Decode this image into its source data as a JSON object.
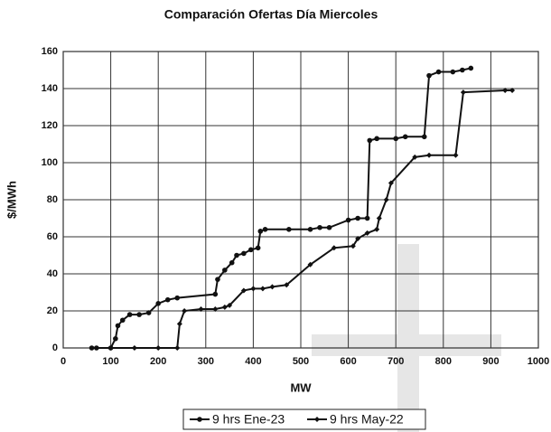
{
  "chart_data": {
    "type": "line",
    "title": "Comparación Ofertas Día Miercoles",
    "x_label": "MW",
    "y_label": "$/MWh",
    "xlim": [
      0,
      1000
    ],
    "xticks": [
      0,
      100,
      200,
      300,
      400,
      500,
      600,
      700,
      800,
      900,
      1000
    ],
    "ylim": [
      0,
      160
    ],
    "yticks": [
      0,
      20,
      40,
      60,
      80,
      100,
      120,
      140,
      160
    ],
    "grid": true,
    "legend": "bottom",
    "series": [
      {
        "name": "9 hrs Ene-23",
        "color": "#111111",
        "marker": "circle",
        "x": [
          60,
          70,
          100,
          110,
          115,
          125,
          140,
          160,
          180,
          200,
          220,
          240,
          320,
          325,
          340,
          355,
          365,
          380,
          395,
          410,
          415,
          425,
          475,
          520,
          540,
          560,
          600,
          620,
          640,
          645,
          660,
          700,
          720,
          760,
          770,
          790,
          820,
          840,
          858
        ],
        "values": [
          0,
          0,
          0,
          5,
          12,
          15,
          18,
          18,
          19,
          24,
          26,
          27,
          29,
          37,
          42,
          46,
          50,
          51,
          53,
          54,
          63,
          64,
          64,
          64,
          65,
          65,
          69,
          70,
          70,
          112,
          113,
          113,
          114,
          114,
          147,
          149,
          149,
          150,
          151
        ]
      },
      {
        "name": "9 hrs May-22",
        "color": "#111111",
        "marker": "diamond",
        "x": [
          100,
          150,
          200,
          240,
          245,
          255,
          290,
          320,
          340,
          350,
          380,
          400,
          420,
          440,
          470,
          520,
          570,
          610,
          620,
          640,
          660,
          665,
          680,
          690,
          740,
          770,
          826,
          842,
          930,
          945
        ],
        "values": [
          0,
          0,
          0,
          0,
          13,
          20,
          21,
          21,
          22,
          23,
          31,
          32,
          32,
          33,
          34,
          45,
          54,
          55,
          59,
          62,
          64,
          70,
          80,
          89,
          103,
          104,
          104,
          138,
          139,
          139
        ]
      }
    ]
  }
}
